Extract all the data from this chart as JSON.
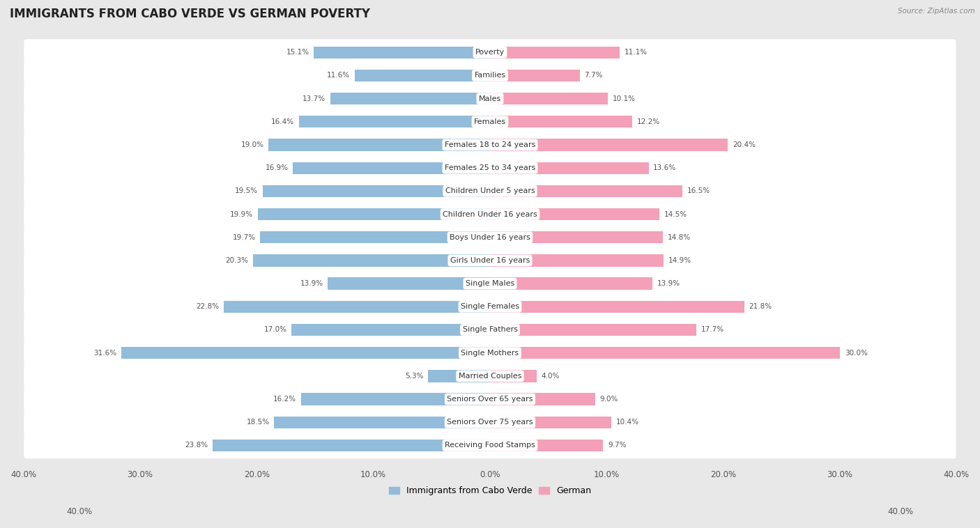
{
  "title": "IMMIGRANTS FROM CABO VERDE VS GERMAN POVERTY",
  "source": "Source: ZipAtlas.com",
  "categories": [
    "Poverty",
    "Families",
    "Males",
    "Females",
    "Females 18 to 24 years",
    "Females 25 to 34 years",
    "Children Under 5 years",
    "Children Under 16 years",
    "Boys Under 16 years",
    "Girls Under 16 years",
    "Single Males",
    "Single Females",
    "Single Fathers",
    "Single Mothers",
    "Married Couples",
    "Seniors Over 65 years",
    "Seniors Over 75 years",
    "Receiving Food Stamps"
  ],
  "cabo_verde": [
    15.1,
    11.6,
    13.7,
    16.4,
    19.0,
    16.9,
    19.5,
    19.9,
    19.7,
    20.3,
    13.9,
    22.8,
    17.0,
    31.6,
    5.3,
    16.2,
    18.5,
    23.8
  ],
  "german": [
    11.1,
    7.7,
    10.1,
    12.2,
    20.4,
    13.6,
    16.5,
    14.5,
    14.8,
    14.9,
    13.9,
    21.8,
    17.7,
    30.0,
    4.0,
    9.0,
    10.4,
    9.7
  ],
  "cabo_verde_color": "#92bcd9",
  "german_color": "#f4a0b8",
  "axis_max": 40.0,
  "background_color": "#e8e8e8",
  "row_bg_color": "#ffffff",
  "title_fontsize": 12,
  "label_fontsize": 8.0,
  "tick_fontsize": 8.5,
  "value_fontsize": 7.5,
  "legend_label_cabo": "Immigrants from Cabo Verde",
  "legend_label_german": "German"
}
